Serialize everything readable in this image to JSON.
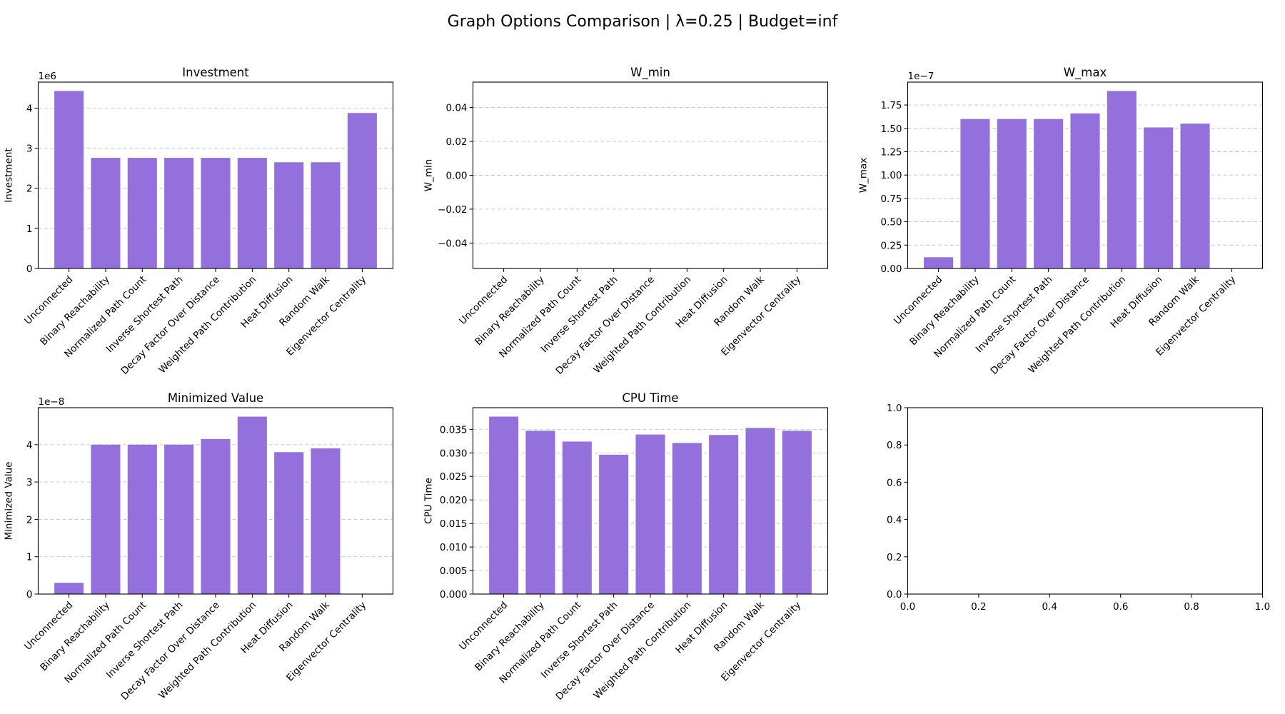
{
  "suptitle": "Graph Options Comparison | λ=0.25 | Budget=inf",
  "bar_color": "#9370DB",
  "chart_data": [
    {
      "type": "bar",
      "title": "Investment",
      "ylabel": "Investment",
      "offset_text": "1e6",
      "categories": [
        "Unconnected",
        "Binary Reachability",
        "Normalized Path Count",
        "Inverse Shortest Path",
        "Decay Factor Over Distance",
        "Weighted Path Contribution",
        "Heat Diffusion",
        "Random Walk",
        "Eigenvector Centrality"
      ],
      "values": [
        4430000,
        2760000,
        2760000,
        2760000,
        2760000,
        2760000,
        2650000,
        2650000,
        3880000
      ],
      "ylim": [
        0,
        4650000
      ],
      "yticks": [
        0,
        1000000,
        2000000,
        3000000,
        4000000
      ],
      "ytick_labels": [
        "0",
        "1",
        "2",
        "3",
        "4"
      ],
      "grid": true
    },
    {
      "type": "bar",
      "title": "W_min",
      "ylabel": "W_min",
      "offset_text": "",
      "categories": [
        "Unconnected",
        "Binary Reachability",
        "Normalized Path Count",
        "Inverse Shortest Path",
        "Decay Factor Over Distance",
        "Weighted Path Contribution",
        "Heat Diffusion",
        "Random Walk",
        "Eigenvector Centrality"
      ],
      "values": [
        0,
        0,
        0,
        0,
        0,
        0,
        0,
        0,
        0
      ],
      "ylim": [
        -0.055,
        0.055
      ],
      "yticks": [
        -0.04,
        -0.02,
        0,
        0.02,
        0.04
      ],
      "ytick_labels": [
        "−0.04",
        "−0.02",
        "0.00",
        "0.02",
        "0.04"
      ],
      "grid": true
    },
    {
      "type": "bar",
      "title": "W_max",
      "ylabel": "W_max",
      "offset_text": "1e−7",
      "categories": [
        "Unconnected",
        "Binary Reachability",
        "Normalized Path Count",
        "Inverse Shortest Path",
        "Decay Factor Over Distance",
        "Weighted Path Contribution",
        "Heat Diffusion",
        "Random Walk",
        "Eigenvector Centrality"
      ],
      "values": [
        1.2e-08,
        1.6e-07,
        1.6e-07,
        1.6e-07,
        1.66e-07,
        1.9e-07,
        1.51e-07,
        1.55e-07,
        0
      ],
      "ylim": [
        0,
        1.995e-07
      ],
      "yticks": [
        0,
        2.5e-08,
        5e-08,
        7.5e-08,
        1e-07,
        1.25e-07,
        1.5e-07,
        1.75e-07
      ],
      "ytick_labels": [
        "0.00",
        "0.25",
        "0.50",
        "0.75",
        "1.00",
        "1.25",
        "1.50",
        "1.75"
      ],
      "grid": true
    },
    {
      "type": "bar",
      "title": "Minimized Value",
      "ylabel": "Minimized Value",
      "offset_text": "1e−8",
      "categories": [
        "Unconnected",
        "Binary Reachability",
        "Normalized Path Count",
        "Inverse Shortest Path",
        "Decay Factor Over Distance",
        "Weighted Path Contribution",
        "Heat Diffusion",
        "Random Walk",
        "Eigenvector Centrality"
      ],
      "values": [
        3e-09,
        4e-08,
        4e-08,
        4e-08,
        4.15e-08,
        4.75e-08,
        3.8e-08,
        3.9e-08,
        0
      ],
      "ylim": [
        0,
        4.99e-08
      ],
      "yticks": [
        0,
        1e-08,
        2e-08,
        3e-08,
        4e-08
      ],
      "ytick_labels": [
        "0",
        "1",
        "2",
        "3",
        "4"
      ],
      "grid": true
    },
    {
      "type": "bar",
      "title": "CPU Time",
      "ylabel": "CPU Time",
      "offset_text": "",
      "categories": [
        "Unconnected",
        "Binary Reachability",
        "Normalized Path Count",
        "Inverse Shortest Path",
        "Decay Factor Over Distance",
        "Weighted Path Contribution",
        "Heat Diffusion",
        "Random Walk",
        "Eigenvector Centrality"
      ],
      "values": [
        0.0377,
        0.0347,
        0.0324,
        0.0296,
        0.0339,
        0.0321,
        0.0338,
        0.0353,
        0.0347
      ],
      "ylim": [
        0,
        0.0396
      ],
      "yticks": [
        0,
        0.005,
        0.01,
        0.015,
        0.02,
        0.025,
        0.03,
        0.035
      ],
      "ytick_labels": [
        "0.000",
        "0.005",
        "0.010",
        "0.015",
        "0.020",
        "0.025",
        "0.030",
        "0.035"
      ],
      "grid": true
    },
    {
      "type": "empty",
      "title": "",
      "ylabel": "",
      "offset_text": "",
      "xlim": [
        0,
        1
      ],
      "ylim": [
        0,
        1
      ],
      "xticks": [
        0,
        0.2,
        0.4,
        0.6,
        0.8,
        1.0
      ],
      "xtick_labels": [
        "0.0",
        "0.2",
        "0.4",
        "0.6",
        "0.8",
        "1.0"
      ],
      "yticks": [
        0,
        0.2,
        0.4,
        0.6,
        0.8,
        1.0
      ],
      "ytick_labels": [
        "0.0",
        "0.2",
        "0.4",
        "0.6",
        "0.8",
        "1.0"
      ],
      "grid": false
    }
  ]
}
